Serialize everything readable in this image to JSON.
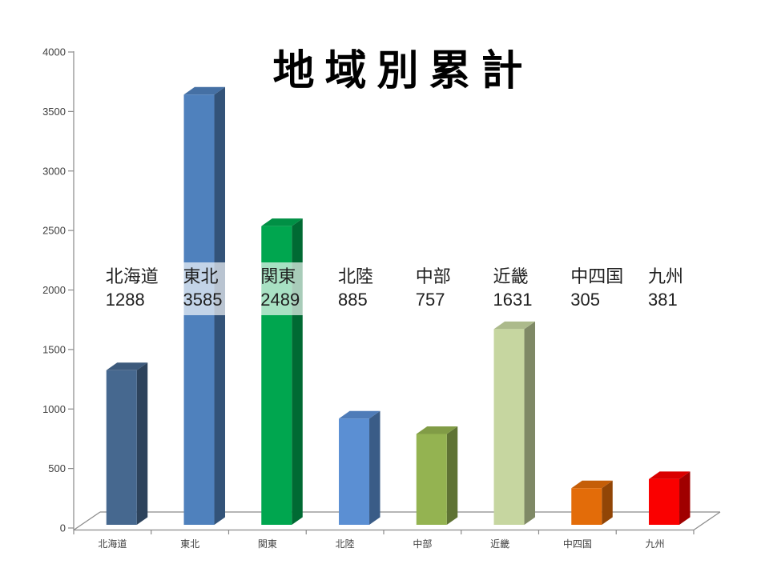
{
  "chart_data": {
    "type": "bar",
    "style": "3d-column",
    "title": "地域別累計",
    "categories": [
      "北海道",
      "東北",
      "関東",
      "北陸",
      "中部",
      "近畿",
      "中四国",
      "九州"
    ],
    "values": [
      1288,
      3585,
      2489,
      885,
      757,
      1631,
      305,
      381
    ],
    "bar_colors": [
      "#46688F",
      "#4F81BD",
      "#00A64F",
      "#5B8FD3",
      "#94B351",
      "#C6D6A0",
      "#E36C09",
      "#FA0000"
    ],
    "ylim": [
      0,
      4000
    ],
    "ytick_step": 500,
    "grid": false,
    "legend": false,
    "data_labels_shown": true
  }
}
